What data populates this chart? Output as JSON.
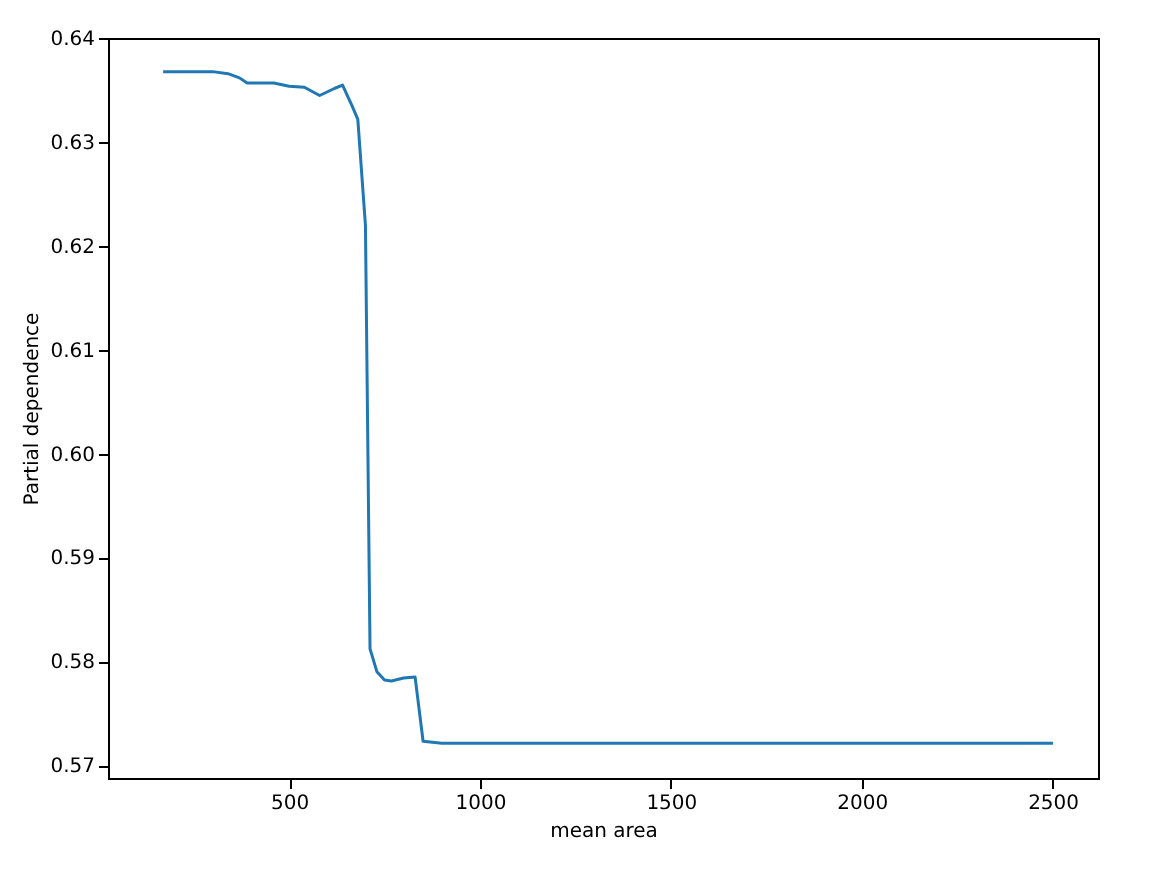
{
  "chart_data": {
    "type": "line",
    "xlabel": "mean area",
    "ylabel": "Partial dependence",
    "x": [
      170,
      300,
      340,
      370,
      390,
      460,
      500,
      540,
      580,
      620,
      640,
      665,
      680,
      700,
      712,
      730,
      750,
      768,
      800,
      830,
      851,
      900,
      2501
    ],
    "series": [
      {
        "color": "#1f77b4",
        "values": [
          0.6368,
          0.6368,
          0.6366,
          0.6362,
          0.6357,
          0.6357,
          0.6354,
          0.6353,
          0.6345,
          0.6352,
          0.6355,
          0.6335,
          0.6322,
          0.622,
          0.5812,
          0.579,
          0.5782,
          0.5781,
          0.5784,
          0.5785,
          0.5723,
          0.5721,
          0.5721
        ]
      }
    ],
    "xlim": [
      25.6,
      2619
    ],
    "ylim": [
      0.56876,
      0.64004
    ],
    "xticks": [
      500,
      1000,
      1500,
      2000,
      2500
    ],
    "yticks": [
      0.57,
      0.58,
      0.59,
      {
        "value": 0.6,
        "label": "0.60"
      },
      0.61,
      0.62,
      0.63,
      0.64
    ],
    "grid": false
  }
}
